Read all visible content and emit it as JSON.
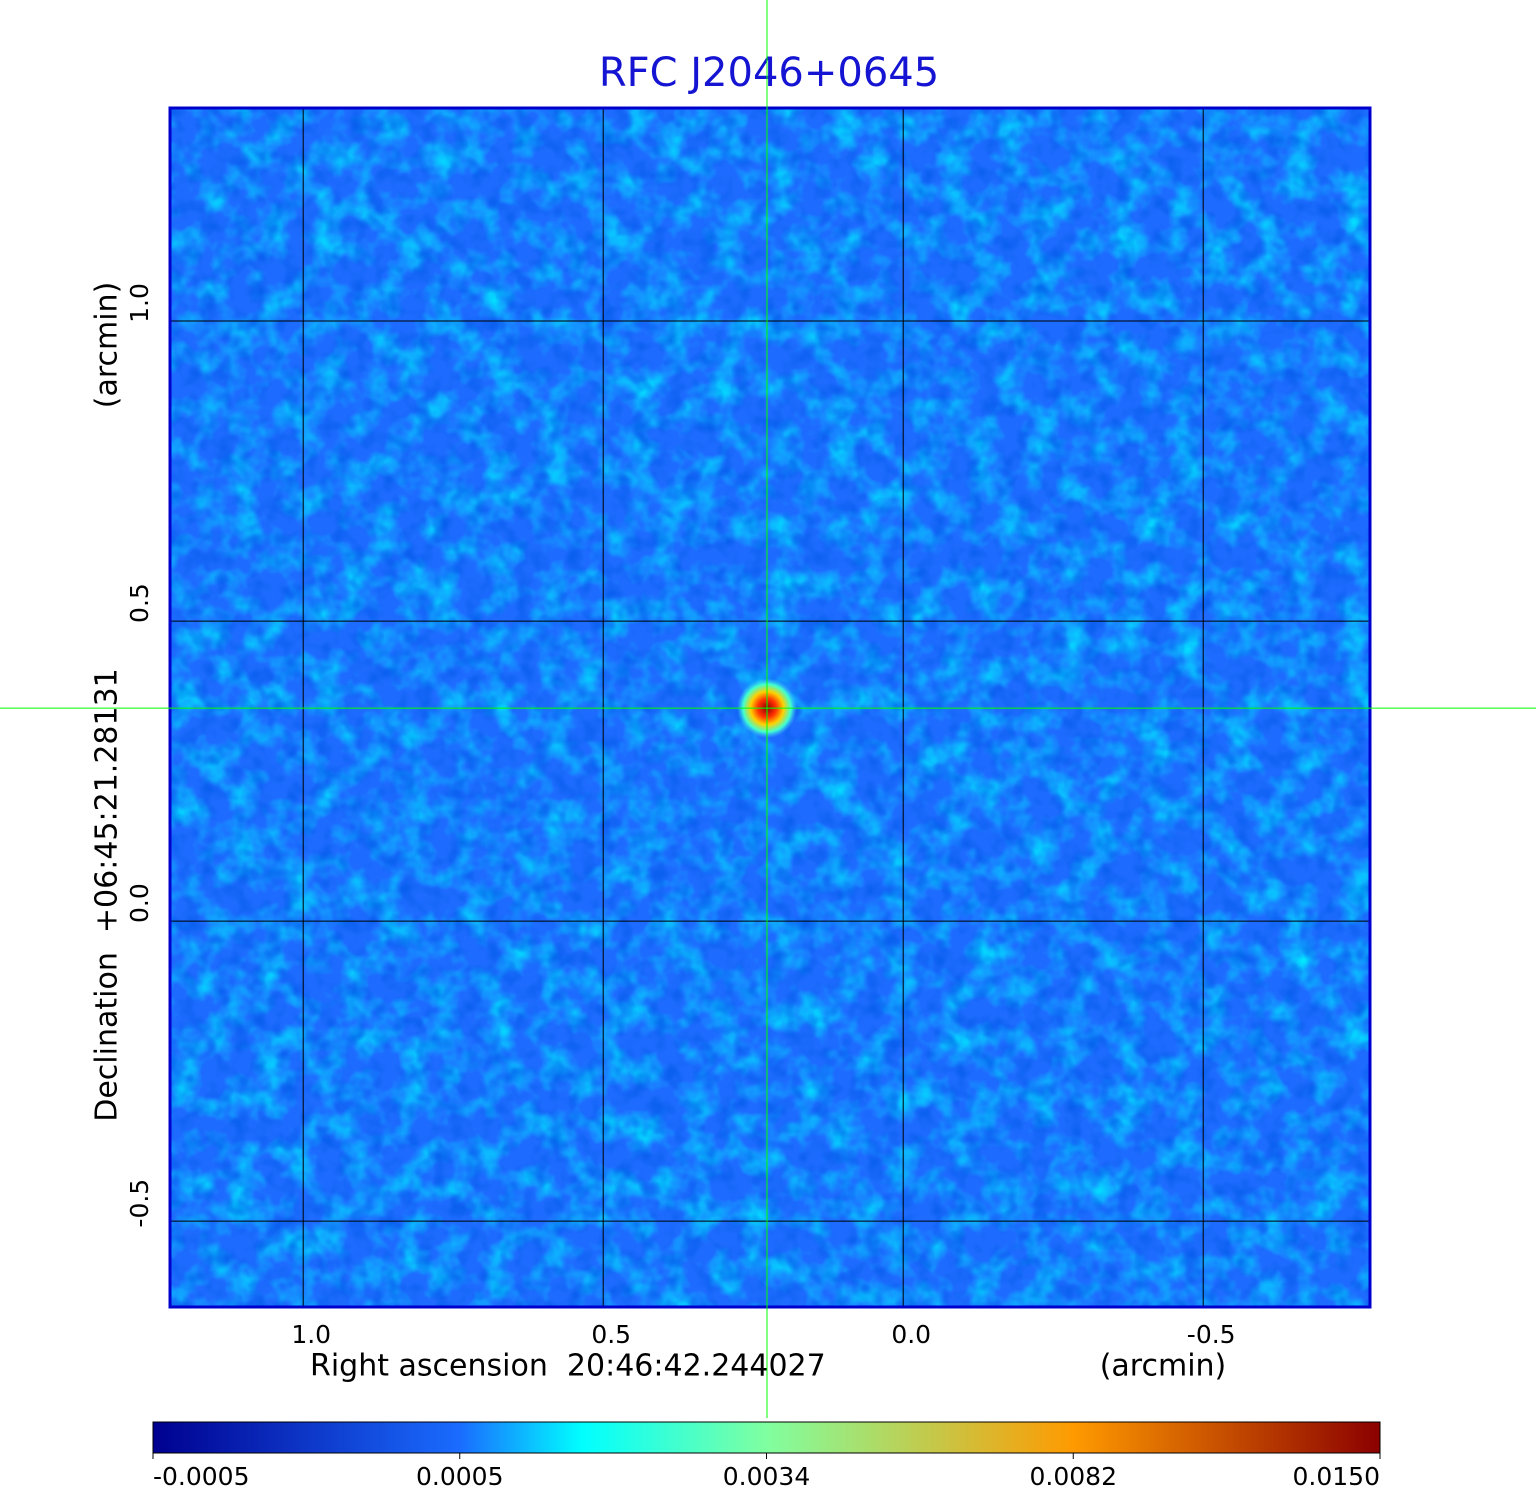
{
  "chart_data": {
    "type": "image",
    "title": "RFC J2046+0645",
    "x_label": "Right ascension  20:46:42.244027",
    "x_unit": "(arcmin)",
    "y_label": "Declination  +06:45:21.28131",
    "y_unit": "(arcmin)",
    "xlim": [
      1.222,
      -0.778
    ],
    "ylim": [
      -0.643,
      1.355
    ],
    "xticks": [
      {
        "value": 1,
        "label": "1.0"
      },
      {
        "value": 0.5,
        "label": "0.5"
      },
      {
        "value": 0,
        "label": "0.0"
      },
      {
        "value": -0.5,
        "label": "-0.5"
      }
    ],
    "yticks": [
      {
        "value": 1,
        "label": "1.0"
      },
      {
        "value": 0.5,
        "label": "0.5"
      },
      {
        "value": 0,
        "label": "0.0"
      },
      {
        "value": -0.5,
        "label": "-0.5"
      }
    ],
    "grid": true,
    "grid_color": "#000000",
    "background_color": "#1e6cff",
    "crosshair_color": "#00ff00",
    "source": {
      "x": 0.227,
      "y": 0.355,
      "peak": 0.015
    },
    "colorbar": {
      "ticks": [
        -0.0005,
        0.0005,
        0.0034,
        0.0082,
        {
          "value": 0.015,
          "label": "0.0150"
        }
      ],
      "colors": [
        "#00008f",
        "#1a6cff",
        "#80ffa0",
        "#ff9a00",
        "#8b0000"
      ]
    }
  }
}
